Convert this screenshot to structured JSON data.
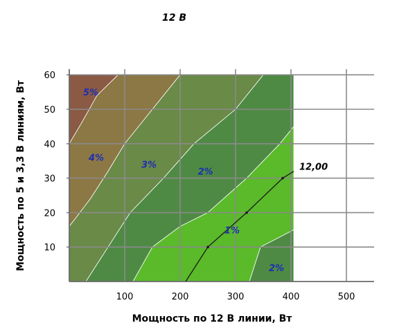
{
  "chart_data": {
    "type": "contour",
    "title": "12 В",
    "xlabel": "Мощность по 12 В линии, Вт",
    "ylabel": "Мощность по 5 и 3,3 В линиям, Вт",
    "xlim": [
      0,
      550
    ],
    "ylim": [
      0,
      62
    ],
    "x_ticks": [
      "100",
      "200",
      "300",
      "400",
      "500"
    ],
    "y_ticks": [
      "10",
      "20",
      "30",
      "40",
      "50",
      "60"
    ],
    "grid": true,
    "regions": [
      {
        "label": "5%",
        "color": "#8a5a45",
        "label_at": [
          25,
          55
        ],
        "boundary": [
          [
            0,
            60
          ],
          [
            0,
            40
          ],
          [
            22,
            46
          ],
          [
            50,
            54
          ],
          [
            88,
            60
          ]
        ]
      },
      {
        "label": "4%",
        "color": "#8c7845",
        "label_at": [
          35,
          36
        ],
        "boundary": [
          [
            0,
            40
          ],
          [
            22,
            46
          ],
          [
            50,
            54
          ],
          [
            88,
            60
          ],
          [
            200,
            60
          ],
          [
            150,
            50
          ],
          [
            100,
            40
          ],
          [
            70,
            32
          ],
          [
            38,
            24
          ],
          [
            0,
            16
          ]
        ]
      },
      {
        "label": "3%",
        "color": "#6a8a48",
        "label_at": [
          130,
          34
        ],
        "boundary": [
          [
            0,
            16
          ],
          [
            38,
            24
          ],
          [
            70,
            32
          ],
          [
            100,
            40
          ],
          [
            150,
            50
          ],
          [
            200,
            60
          ],
          [
            350,
            60
          ],
          [
            300,
            50
          ],
          [
            225,
            40
          ],
          [
            170,
            30
          ],
          [
            110,
            20
          ],
          [
            70,
            10
          ],
          [
            30,
            0
          ],
          [
            0,
            0
          ]
        ]
      },
      {
        "label": "2%",
        "color": "#4f8a45",
        "label_at": [
          232,
          32
        ],
        "boundary": [
          [
            30,
            0
          ],
          [
            70,
            10
          ],
          [
            110,
            20
          ],
          [
            170,
            30
          ],
          [
            225,
            40
          ],
          [
            300,
            50
          ],
          [
            350,
            60
          ],
          [
            405,
            60
          ],
          [
            405,
            45
          ],
          [
            380,
            40
          ],
          [
            320,
            30
          ],
          [
            250,
            20
          ],
          [
            200,
            16
          ],
          [
            150,
            10
          ],
          [
            115,
            0
          ]
        ]
      },
      {
        "label": "1%",
        "color": "#5aba2a",
        "label_at": [
          280,
          15
        ],
        "boundary": [
          [
            115,
            0
          ],
          [
            150,
            10
          ],
          [
            200,
            16
          ],
          [
            250,
            20
          ],
          [
            320,
            30
          ],
          [
            380,
            40
          ],
          [
            405,
            45
          ],
          [
            405,
            15
          ],
          [
            345,
            10
          ],
          [
            325,
            0
          ]
        ]
      },
      {
        "label": "2%",
        "color": "#4f8a45",
        "label_at": [
          360,
          4
        ],
        "boundary": [
          [
            325,
            0
          ],
          [
            345,
            10
          ],
          [
            405,
            15
          ],
          [
            405,
            0
          ]
        ]
      }
    ],
    "curve": {
      "label": "12,00",
      "points": [
        [
          210,
          0
        ],
        [
          250,
          10
        ],
        [
          320,
          20
        ],
        [
          385,
          30
        ],
        [
          405,
          32
        ]
      ]
    }
  }
}
